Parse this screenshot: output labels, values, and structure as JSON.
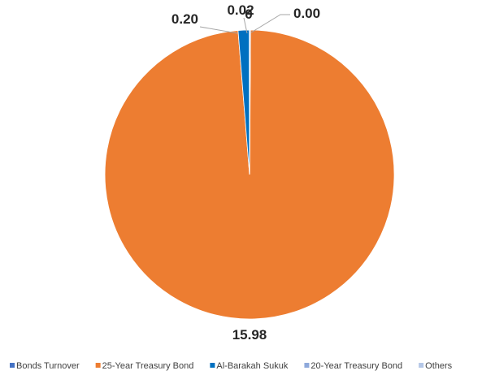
{
  "chart_data": {
    "type": "pie",
    "title": "",
    "series": [
      {
        "name": "Bonds Turnover",
        "categories": [
          "25-Year Treasury Bond",
          "Al-Barakah Sukuk",
          "20-Year Treasury Bond",
          "Others"
        ],
        "values": [
          15.98,
          0.2,
          0.02,
          0.0
        ],
        "labels": [
          "15.98",
          "0.20",
          "0.02",
          "0.00"
        ],
        "colors": [
          "#ED7D31",
          "#0070C0",
          "#8EA9DB",
          "#B4C7E7"
        ]
      }
    ],
    "legend": {
      "position": "bottom",
      "items": [
        {
          "label": "Bonds Turnover",
          "color": "#4472C4"
        },
        {
          "label": "25-Year Treasury Bond",
          "color": "#ED7D31"
        },
        {
          "label": "Al-Barakah Sukuk",
          "color": "#0070C0"
        },
        {
          "label": "20-Year Treasury Bond",
          "color": "#8EA9DB"
        },
        {
          "label": "Others",
          "color": "#B4C7E7"
        }
      ]
    },
    "overlapping_label": "0"
  }
}
